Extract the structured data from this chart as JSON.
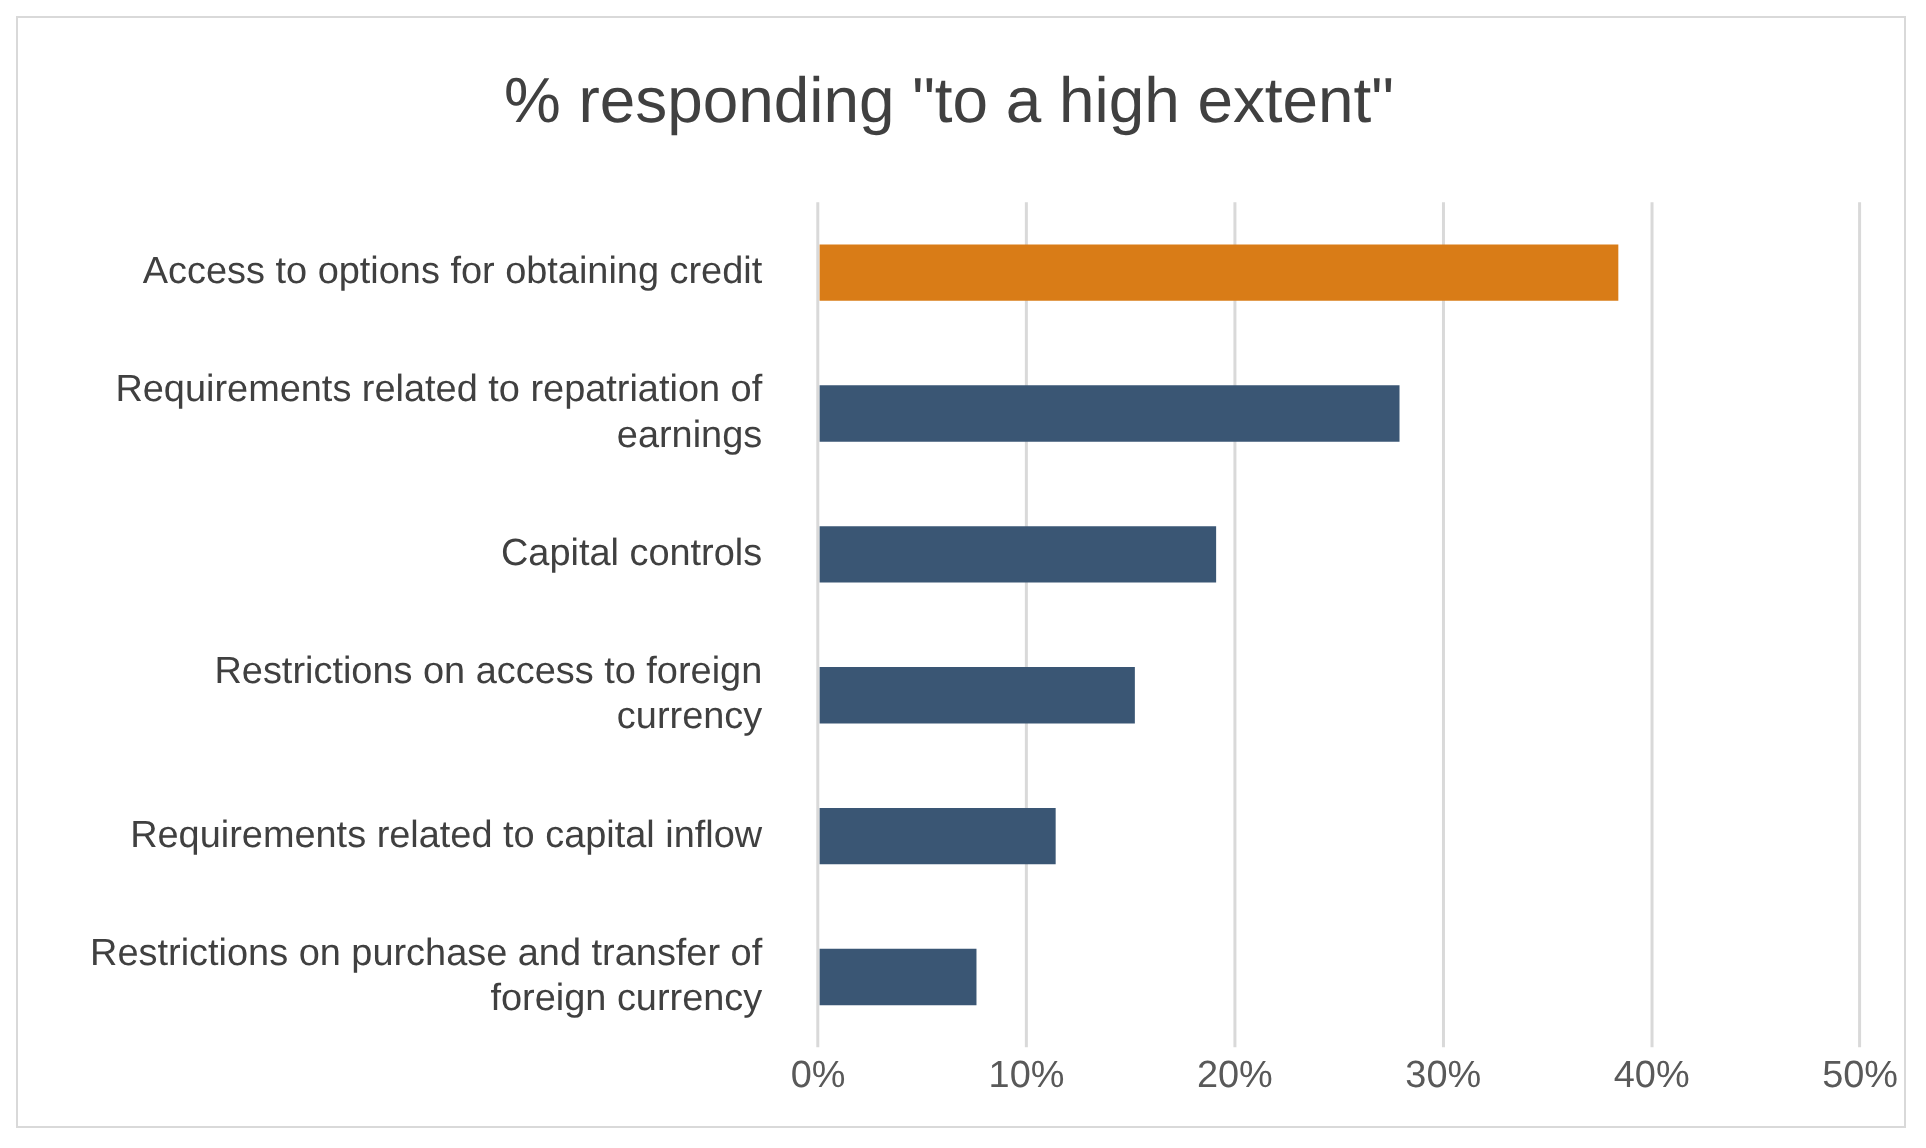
{
  "chart_data": {
    "type": "bar",
    "orientation": "horizontal",
    "title": "% responding \"to a high extent\"",
    "categories": [
      "Access to options for obtaining credit",
      "Requirements related to repatriation of earnings",
      "Capital controls",
      "Restrictions on access to foreign currency",
      "Requirements related to capital inflow",
      "Restrictions on purchase and transfer of foreign currency"
    ],
    "values": [
      38.4,
      27.9,
      19.1,
      15.2,
      11.4,
      7.6
    ],
    "colors": [
      "#d97c17",
      "#3a5674",
      "#3a5674",
      "#3a5674",
      "#3a5674",
      "#3a5674"
    ],
    "xlim": [
      0,
      50
    ],
    "xticks": [
      {
        "value": 0,
        "label": "0%"
      },
      {
        "value": 10,
        "label": "10%"
      },
      {
        "value": 20,
        "label": "20%"
      },
      {
        "value": 30,
        "label": "30%"
      },
      {
        "value": 40,
        "label": "40%"
      },
      {
        "value": 50,
        "label": "50%"
      }
    ],
    "grid": "x",
    "legend": false
  }
}
